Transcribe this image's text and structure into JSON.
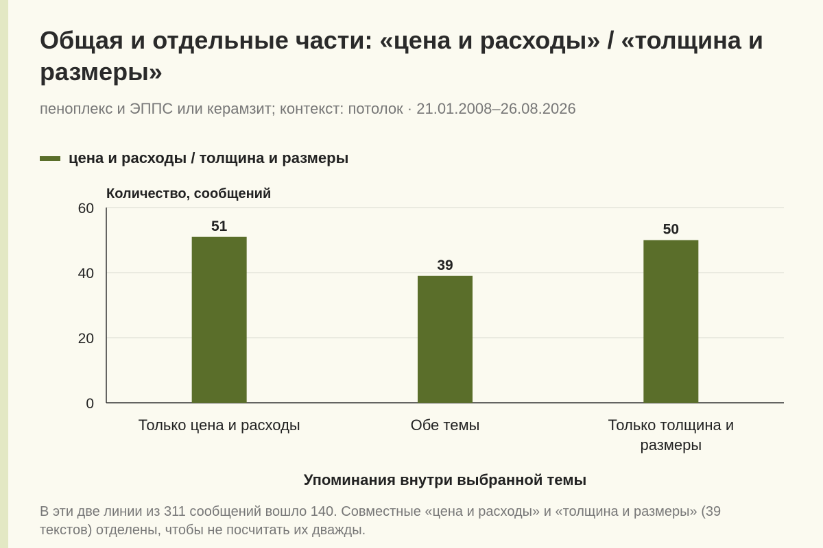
{
  "header": {
    "title": "Общая и отдельные части: «цена и расходы» / «толщина и размеры»",
    "subtitle": "пеноплекс и ЭППС или керамзит; контекст: потолок · 21.01.2008–26.08.2026"
  },
  "legend": {
    "label": "цена и расходы / толщина и размеры"
  },
  "note": "В эти две линии из 311 сообщений вошло 140. Совместные «цена и расходы» и «толщина и размеры» (39 текстов) отделены, чтобы не посчитать их дважды.",
  "colors": {
    "bar": "#5a6e2a",
    "background": "#fbfaf0",
    "grid": "#d9d9d0"
  },
  "chart_data": {
    "type": "bar",
    "categories": [
      [
        "Только цена и расходы"
      ],
      [
        "Обе темы"
      ],
      [
        "Только толщина и",
        "размеры"
      ]
    ],
    "series": [
      {
        "name": "цена и расходы / толщина и размеры",
        "values": [
          51,
          39,
          50
        ]
      }
    ],
    "ylabel": "Количество, сообщений",
    "xlabel": "Упоминания внутри выбранной темы",
    "ylim": [
      0,
      60
    ],
    "yticks": [
      0,
      20,
      40,
      60
    ],
    "grid": true,
    "legend_position": "top-left"
  }
}
